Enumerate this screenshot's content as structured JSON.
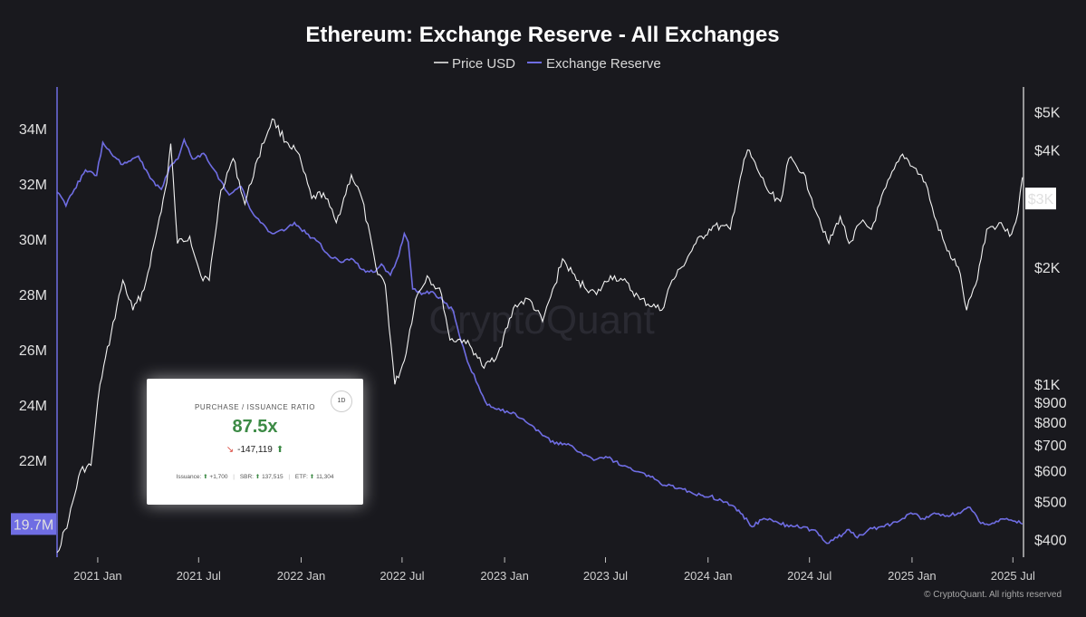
{
  "chart_data": {
    "type": "line",
    "title": "Ethereum: Exchange Reserve - All Exchanges",
    "legend": {
      "placement": "top-center",
      "entries": [
        "Price USD",
        "Exchange Reserve"
      ]
    },
    "colors": {
      "price": "#f2f2f2",
      "reserve": "#6f6de3",
      "background": "#19191e"
    },
    "grid": false,
    "x_tick_labels": [
      "2021 Jan",
      "2021 Jul",
      "2022 Jan",
      "2022 Jul",
      "2023 Jan",
      "2023 Jul",
      "2024 Jan",
      "2024 Jul",
      "2025 Jan",
      "2025 Jul"
    ],
    "x_ticks": [
      "2021-01-01",
      "2021-07-01",
      "2022-01-01",
      "2022-07-01",
      "2023-01-01",
      "2023-07-01",
      "2024-01-01",
      "2024-07-01",
      "2025-01-01",
      "2025-07-01"
    ],
    "x_range": [
      "2020-10-20",
      "2025-07-20"
    ],
    "y_left": {
      "ylim": [
        18.5,
        35.5
      ],
      "tick_labels": [
        "34M",
        "32M",
        "30M",
        "28M",
        "26M",
        "24M",
        "22M"
      ],
      "tick_values": [
        34,
        32,
        30,
        28,
        26,
        24,
        22
      ],
      "current_label": "19.7M",
      "current_value": 19.7
    },
    "y_right": {
      "scale": "log",
      "ylim": [
        360,
        5800
      ],
      "tick_labels": [
        "$5K",
        "$4K",
        "$2K",
        "$1K",
        "$900",
        "$800",
        "$700",
        "$600",
        "$500",
        "$400"
      ],
      "tick_values": [
        5000,
        4000,
        2000,
        1000,
        900,
        800,
        700,
        600,
        500,
        400
      ],
      "current_label": "$3K",
      "current_value": 3000
    },
    "series": [
      {
        "name": "Price USD",
        "axis": "right",
        "points": [
          [
            "2020-10-20",
            370
          ],
          [
            "2020-11-10",
            450
          ],
          [
            "2020-12-01",
            600
          ],
          [
            "2020-12-20",
            620
          ],
          [
            "2021-01-05",
            1000
          ],
          [
            "2021-01-25",
            1350
          ],
          [
            "2021-02-15",
            1850
          ],
          [
            "2021-03-05",
            1550
          ],
          [
            "2021-03-25",
            1750
          ],
          [
            "2021-04-15",
            2400
          ],
          [
            "2021-05-05",
            3300
          ],
          [
            "2021-05-12",
            4150
          ],
          [
            "2021-05-24",
            2300
          ],
          [
            "2021-06-15",
            2400
          ],
          [
            "2021-07-05",
            1900
          ],
          [
            "2021-07-20",
            1850
          ],
          [
            "2021-08-10",
            3150
          ],
          [
            "2021-09-01",
            3800
          ],
          [
            "2021-09-22",
            2900
          ],
          [
            "2021-10-15",
            3800
          ],
          [
            "2021-11-10",
            4800
          ],
          [
            "2021-12-05",
            4200
          ],
          [
            "2021-12-25",
            3950
          ],
          [
            "2022-01-20",
            3000
          ],
          [
            "2022-02-10",
            3100
          ],
          [
            "2022-03-05",
            2600
          ],
          [
            "2022-04-01",
            3450
          ],
          [
            "2022-04-20",
            3000
          ],
          [
            "2022-05-15",
            2000
          ],
          [
            "2022-06-01",
            1800
          ],
          [
            "2022-06-18",
            1000
          ],
          [
            "2022-07-05",
            1150
          ],
          [
            "2022-07-25",
            1650
          ],
          [
            "2022-08-15",
            1900
          ],
          [
            "2022-09-10",
            1700
          ],
          [
            "2022-09-25",
            1300
          ],
          [
            "2022-10-20",
            1300
          ],
          [
            "2022-11-10",
            1200
          ],
          [
            "2022-11-25",
            1100
          ],
          [
            "2022-12-20",
            1200
          ],
          [
            "2023-01-20",
            1600
          ],
          [
            "2023-02-15",
            1650
          ],
          [
            "2023-03-10",
            1450
          ],
          [
            "2023-04-01",
            1800
          ],
          [
            "2023-04-15",
            2100
          ],
          [
            "2023-05-10",
            1850
          ],
          [
            "2023-06-15",
            1700
          ],
          [
            "2023-07-10",
            1900
          ],
          [
            "2023-08-01",
            1850
          ],
          [
            "2023-09-01",
            1650
          ],
          [
            "2023-10-10",
            1550
          ],
          [
            "2023-10-25",
            1800
          ],
          [
            "2023-11-15",
            2000
          ],
          [
            "2023-12-10",
            2300
          ],
          [
            "2024-01-10",
            2550
          ],
          [
            "2024-02-10",
            2500
          ],
          [
            "2024-02-28",
            3400
          ],
          [
            "2024-03-12",
            4000
          ],
          [
            "2024-04-01",
            3500
          ],
          [
            "2024-04-20",
            3100
          ],
          [
            "2024-05-10",
            2950
          ],
          [
            "2024-05-25",
            3800
          ],
          [
            "2024-06-20",
            3500
          ],
          [
            "2024-07-05",
            3000
          ],
          [
            "2024-08-05",
            2300
          ],
          [
            "2024-08-25",
            2700
          ],
          [
            "2024-09-10",
            2300
          ],
          [
            "2024-10-01",
            2600
          ],
          [
            "2024-10-20",
            2500
          ],
          [
            "2024-11-15",
            3200
          ],
          [
            "2024-12-15",
            3900
          ],
          [
            "2025-01-05",
            3600
          ],
          [
            "2025-01-25",
            3300
          ],
          [
            "2025-02-10",
            2700
          ],
          [
            "2025-03-05",
            2200
          ],
          [
            "2025-03-25",
            2000
          ],
          [
            "2025-04-09",
            1550
          ],
          [
            "2025-04-25",
            1800
          ],
          [
            "2025-05-15",
            2500
          ],
          [
            "2025-06-10",
            2600
          ],
          [
            "2025-06-25",
            2400
          ],
          [
            "2025-07-10",
            2750
          ],
          [
            "2025-07-18",
            3400
          ]
        ]
      },
      {
        "name": "Exchange Reserve",
        "axis": "left",
        "points": [
          [
            "2020-10-20",
            31.7
          ],
          [
            "2020-11-05",
            31.2
          ],
          [
            "2020-11-20",
            31.8
          ],
          [
            "2020-12-10",
            32.5
          ],
          [
            "2020-12-30",
            32.3
          ],
          [
            "2021-01-10",
            33.5
          ],
          [
            "2021-01-25",
            33.1
          ],
          [
            "2021-02-15",
            32.7
          ],
          [
            "2021-03-15",
            33.0
          ],
          [
            "2021-04-05",
            32.2
          ],
          [
            "2021-04-25",
            31.8
          ],
          [
            "2021-05-10",
            32.6
          ],
          [
            "2021-05-25",
            32.9
          ],
          [
            "2021-06-05",
            33.6
          ],
          [
            "2021-06-20",
            32.9
          ],
          [
            "2021-07-10",
            33.1
          ],
          [
            "2021-07-25",
            32.6
          ],
          [
            "2021-08-10",
            32.1
          ],
          [
            "2021-08-25",
            31.6
          ],
          [
            "2021-09-15",
            31.9
          ],
          [
            "2021-10-01",
            31.1
          ],
          [
            "2021-10-20",
            30.6
          ],
          [
            "2021-11-10",
            30.2
          ],
          [
            "2021-12-01",
            30.3
          ],
          [
            "2021-12-20",
            30.6
          ],
          [
            "2022-01-10",
            30.2
          ],
          [
            "2022-02-01",
            29.9
          ],
          [
            "2022-02-20",
            29.4
          ],
          [
            "2022-03-10",
            29.2
          ],
          [
            "2022-04-01",
            29.3
          ],
          [
            "2022-04-20",
            28.9
          ],
          [
            "2022-05-10",
            28.8
          ],
          [
            "2022-05-25",
            29.1
          ],
          [
            "2022-06-10",
            28.7
          ],
          [
            "2022-06-25",
            29.4
          ],
          [
            "2022-07-05",
            30.2
          ],
          [
            "2022-07-12",
            29.9
          ],
          [
            "2022-07-20",
            28.2
          ],
          [
            "2022-08-05",
            28.0
          ],
          [
            "2022-08-25",
            28.1
          ],
          [
            "2022-09-15",
            27.7
          ],
          [
            "2022-10-01",
            27.4
          ],
          [
            "2022-10-15",
            26.3
          ],
          [
            "2022-10-30",
            25.4
          ],
          [
            "2022-11-15",
            24.7
          ],
          [
            "2022-12-01",
            24.0
          ],
          [
            "2022-12-25",
            23.8
          ],
          [
            "2023-01-20",
            23.7
          ],
          [
            "2023-02-15",
            23.3
          ],
          [
            "2023-03-10",
            22.9
          ],
          [
            "2023-04-01",
            22.6
          ],
          [
            "2023-04-25",
            22.6
          ],
          [
            "2023-05-15",
            22.3
          ],
          [
            "2023-06-10",
            22.0
          ],
          [
            "2023-07-05",
            22.1
          ],
          [
            "2023-08-01",
            21.8
          ],
          [
            "2023-08-25",
            21.6
          ],
          [
            "2023-09-20",
            21.4
          ],
          [
            "2023-10-15",
            21.1
          ],
          [
            "2023-11-10",
            21.0
          ],
          [
            "2023-12-05",
            20.8
          ],
          [
            "2024-01-05",
            20.7
          ],
          [
            "2024-02-01",
            20.5
          ],
          [
            "2024-02-25",
            20.2
          ],
          [
            "2024-03-20",
            19.6
          ],
          [
            "2024-04-10",
            19.9
          ],
          [
            "2024-05-01",
            19.8
          ],
          [
            "2024-05-25",
            19.6
          ],
          [
            "2024-06-20",
            19.6
          ],
          [
            "2024-07-15",
            19.4
          ],
          [
            "2024-08-01",
            19.0
          ],
          [
            "2024-08-20",
            19.2
          ],
          [
            "2024-09-10",
            19.5
          ],
          [
            "2024-09-25",
            19.2
          ],
          [
            "2024-10-15",
            19.5
          ],
          [
            "2024-11-05",
            19.6
          ],
          [
            "2024-11-25",
            19.7
          ],
          [
            "2024-12-15",
            19.9
          ],
          [
            "2024-12-30",
            20.1
          ],
          [
            "2025-01-20",
            19.9
          ],
          [
            "2025-02-10",
            20.1
          ],
          [
            "2025-03-05",
            20.0
          ],
          [
            "2025-03-25",
            20.1
          ],
          [
            "2025-04-15",
            20.3
          ],
          [
            "2025-05-01",
            19.8
          ],
          [
            "2025-05-15",
            19.7
          ],
          [
            "2025-06-01",
            19.8
          ],
          [
            "2025-06-20",
            19.9
          ],
          [
            "2025-07-05",
            19.8
          ],
          [
            "2025-07-18",
            19.7
          ]
        ]
      }
    ]
  },
  "watermark": "CryptoQuant",
  "credit": "© CryptoQuant. All rights reserved",
  "overlay_card": {
    "title": "PURCHASE / ISSUANCE RATIO",
    "badge": "1D",
    "value": "87.5x",
    "delta": "-147,119",
    "footer": {
      "issuance_label": "Issuance:",
      "issuance_value": "+1,700",
      "sbr_label": "SBR:",
      "sbr_value": "137,515",
      "etf_label": "ETF:",
      "etf_value": "11,304"
    }
  }
}
